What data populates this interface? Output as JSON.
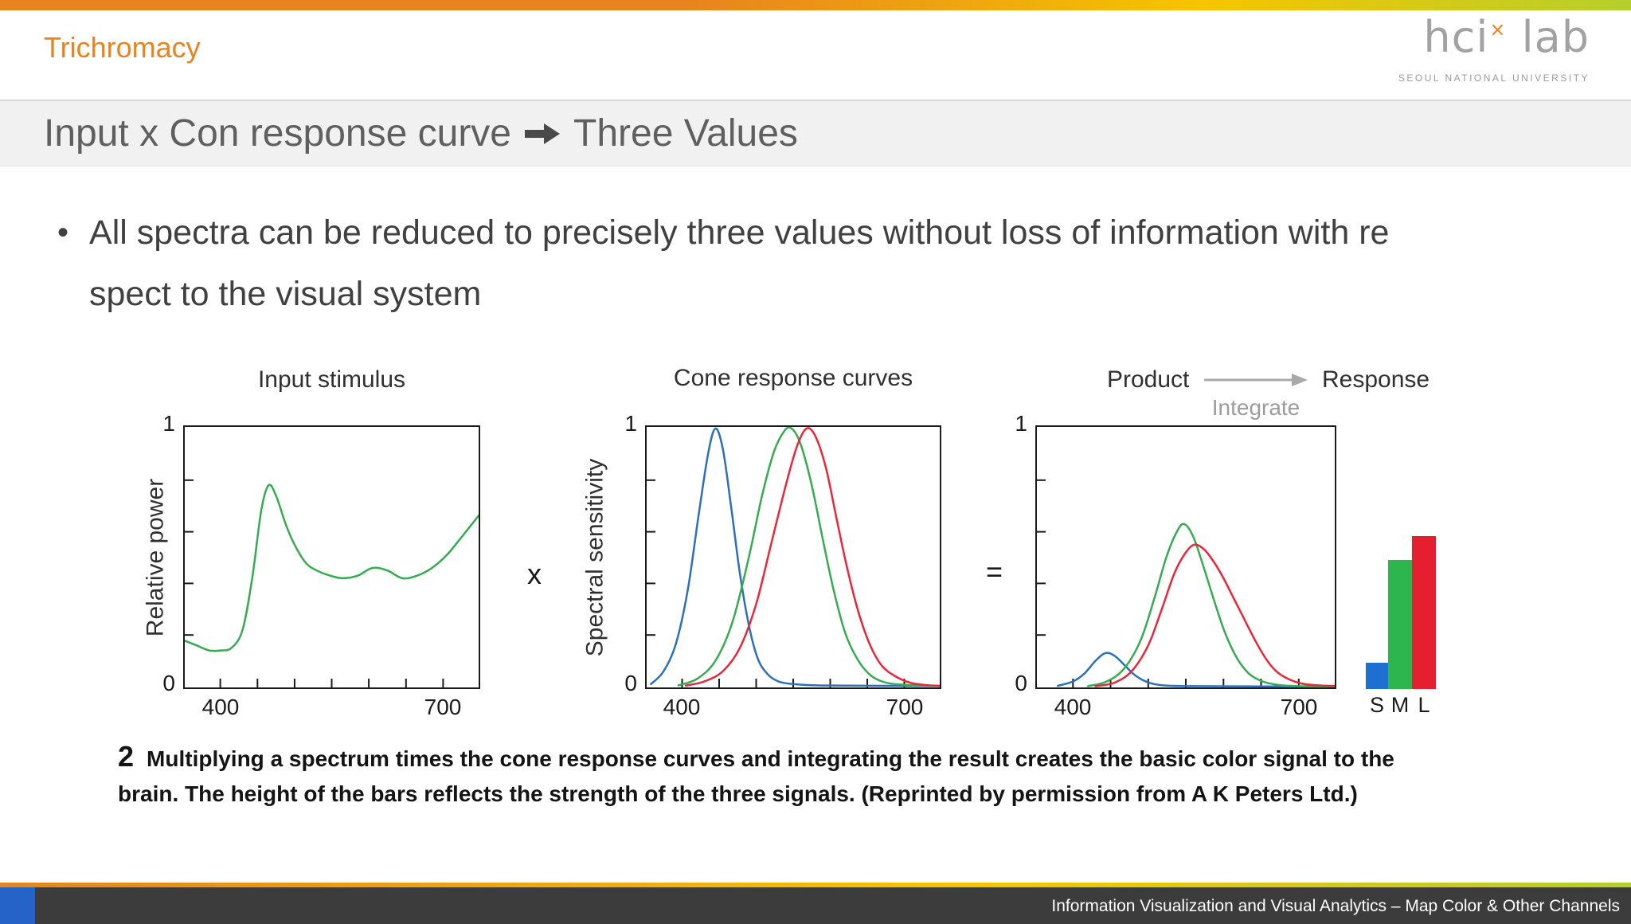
{
  "theme": {
    "accent_orange": "#e8831e",
    "accent_yellow": "#f6c500",
    "accent_green": "#b5cf2c",
    "accent_blue": "#2563c8",
    "footer_bg": "#3c3c3c",
    "band_bg": "#f1f1f1"
  },
  "header": {
    "section": "Trichromacy"
  },
  "logo": {
    "hci": "hci",
    "x": "×",
    "lab": "lab",
    "subtitle": "SEOUL NATIONAL UNIVERSITY"
  },
  "title": {
    "pre": "Input x Con response curve",
    "post": "Three Values"
  },
  "bullet": {
    "marker": "•",
    "line1": "All spectra can be reduced to precisely three values without loss of information with re",
    "line2": "spect to the visual system"
  },
  "figure": {
    "operator_multiply": "x",
    "operator_equals": "="
  },
  "caption": {
    "number": "2",
    "text": "Multiplying a spectrum times the cone response curves and integrating the result creates the basic color signal to the brain. The height of the bars reflects the strength of the three signals. (Reprinted by permission from A K Peters Ltd.)"
  },
  "footer": {
    "text": "Information Visualization and Visual Analytics – Map Color & Other Channels"
  },
  "chart_data": [
    {
      "type": "line",
      "title": "Input stimulus",
      "ylabel": "Relative power",
      "xlim": [
        350,
        750
      ],
      "ylim": [
        0,
        1
      ],
      "xticks_minor": [
        400,
        450,
        500,
        550,
        600,
        650,
        700
      ],
      "yticks_minor": [
        0.2,
        0.4,
        0.6,
        0.8
      ],
      "xtick_left": "400",
      "xtick_right": "700",
      "ytick_top": "1",
      "ytick_bottom": "0",
      "series": [
        {
          "name": "input-spectrum",
          "color": "#35ab52",
          "points": [
            [
              350,
              0.18
            ],
            [
              368,
              0.16
            ],
            [
              385,
              0.14
            ],
            [
              400,
              0.14
            ],
            [
              415,
              0.15
            ],
            [
              430,
              0.22
            ],
            [
              443,
              0.42
            ],
            [
              455,
              0.68
            ],
            [
              465,
              0.78
            ],
            [
              475,
              0.74
            ],
            [
              488,
              0.63
            ],
            [
              500,
              0.55
            ],
            [
              515,
              0.48
            ],
            [
              530,
              0.45
            ],
            [
              548,
              0.43
            ],
            [
              565,
              0.42
            ],
            [
              585,
              0.43
            ],
            [
              605,
              0.46
            ],
            [
              625,
              0.45
            ],
            [
              645,
              0.42
            ],
            [
              665,
              0.43
            ],
            [
              685,
              0.46
            ],
            [
              705,
              0.51
            ],
            [
              725,
              0.58
            ],
            [
              750,
              0.67
            ]
          ]
        }
      ]
    },
    {
      "type": "line",
      "title": "Cone response curves",
      "ylabel": "Spectral sensitivity",
      "xlim": [
        350,
        750
      ],
      "ylim": [
        0,
        1
      ],
      "xticks_minor": [
        400,
        450,
        500,
        550,
        600,
        650,
        700
      ],
      "yticks_minor": [
        0.2,
        0.4,
        0.6,
        0.8
      ],
      "xtick_left": "400",
      "xtick_right": "700",
      "ytick_top": "1",
      "ytick_bottom": "0",
      "series": [
        {
          "name": "S-cone",
          "color": "#2b6fbd",
          "points": [
            [
              358,
              0.01
            ],
            [
              375,
              0.06
            ],
            [
              392,
              0.17
            ],
            [
              408,
              0.38
            ],
            [
              422,
              0.66
            ],
            [
              435,
              0.9
            ],
            [
              445,
              1.0
            ],
            [
              455,
              0.92
            ],
            [
              466,
              0.7
            ],
            [
              478,
              0.44
            ],
            [
              490,
              0.24
            ],
            [
              502,
              0.11
            ],
            [
              515,
              0.05
            ],
            [
              530,
              0.02
            ],
            [
              550,
              0.01
            ],
            [
              580,
              0.005
            ],
            [
              620,
              0.004
            ],
            [
              680,
              0.003
            ],
            [
              750,
              0.002
            ]
          ]
        },
        {
          "name": "M-cone",
          "color": "#35ab52",
          "points": [
            [
              395,
              0.005
            ],
            [
              420,
              0.03
            ],
            [
              445,
              0.1
            ],
            [
              468,
              0.25
            ],
            [
              490,
              0.5
            ],
            [
              508,
              0.74
            ],
            [
              524,
              0.91
            ],
            [
              538,
              0.99
            ],
            [
              548,
              1.0
            ],
            [
              560,
              0.94
            ],
            [
              575,
              0.78
            ],
            [
              590,
              0.57
            ],
            [
              605,
              0.37
            ],
            [
              620,
              0.21
            ],
            [
              636,
              0.11
            ],
            [
              652,
              0.05
            ],
            [
              670,
              0.02
            ],
            [
              695,
              0.008
            ],
            [
              750,
              0.002
            ]
          ]
        },
        {
          "name": "L-cone",
          "color": "#e8273a",
          "points": [
            [
              405,
              0.004
            ],
            [
              430,
              0.02
            ],
            [
              455,
              0.06
            ],
            [
              478,
              0.15
            ],
            [
              500,
              0.32
            ],
            [
              520,
              0.55
            ],
            [
              540,
              0.78
            ],
            [
              555,
              0.93
            ],
            [
              568,
              1.0
            ],
            [
              580,
              0.97
            ],
            [
              594,
              0.85
            ],
            [
              608,
              0.66
            ],
            [
              622,
              0.47
            ],
            [
              638,
              0.29
            ],
            [
              654,
              0.16
            ],
            [
              670,
              0.08
            ],
            [
              688,
              0.04
            ],
            [
              708,
              0.015
            ],
            [
              730,
              0.006
            ],
            [
              750,
              0.003
            ]
          ]
        }
      ]
    },
    {
      "type": "line",
      "title_left": "Product",
      "title_mid": "Integrate",
      "title_right": "Response",
      "xlim": [
        350,
        750
      ],
      "ylim": [
        0,
        1
      ],
      "xticks_minor": [
        400,
        450,
        500,
        550,
        600,
        650,
        700
      ],
      "yticks_minor": [
        0.2,
        0.4,
        0.6,
        0.8
      ],
      "xtick_left": "400",
      "xtick_right": "700",
      "ytick_top": "1",
      "ytick_bottom": "0",
      "series": [
        {
          "name": "S-product",
          "color": "#2b6fbd",
          "points": [
            [
              380,
              0.003
            ],
            [
              400,
              0.02
            ],
            [
              415,
              0.05
            ],
            [
              430,
              0.1
            ],
            [
              443,
              0.13
            ],
            [
              455,
              0.12
            ],
            [
              468,
              0.085
            ],
            [
              480,
              0.05
            ],
            [
              493,
              0.025
            ],
            [
              508,
              0.01
            ],
            [
              525,
              0.004
            ],
            [
              560,
              0.002
            ],
            [
              650,
              0.001
            ],
            [
              750,
              0.001
            ]
          ]
        },
        {
          "name": "M-product",
          "color": "#35ab52",
          "points": [
            [
              420,
              0.002
            ],
            [
              445,
              0.02
            ],
            [
              468,
              0.07
            ],
            [
              490,
              0.18
            ],
            [
              508,
              0.34
            ],
            [
              524,
              0.5
            ],
            [
              538,
              0.6
            ],
            [
              548,
              0.63
            ],
            [
              560,
              0.58
            ],
            [
              574,
              0.46
            ],
            [
              588,
              0.33
            ],
            [
              602,
              0.21
            ],
            [
              618,
              0.11
            ],
            [
              634,
              0.05
            ],
            [
              652,
              0.02
            ],
            [
              672,
              0.007
            ],
            [
              700,
              0.002
            ],
            [
              750,
              0.001
            ]
          ]
        },
        {
          "name": "L-product",
          "color": "#e8273a",
          "points": [
            [
              430,
              0.002
            ],
            [
              455,
              0.015
            ],
            [
              478,
              0.06
            ],
            [
              500,
              0.16
            ],
            [
              518,
              0.3
            ],
            [
              535,
              0.44
            ],
            [
              550,
              0.52
            ],
            [
              562,
              0.55
            ],
            [
              575,
              0.53
            ],
            [
              588,
              0.48
            ],
            [
              600,
              0.42
            ],
            [
              614,
              0.34
            ],
            [
              628,
              0.26
            ],
            [
              642,
              0.18
            ],
            [
              656,
              0.11
            ],
            [
              670,
              0.06
            ],
            [
              686,
              0.03
            ],
            [
              704,
              0.012
            ],
            [
              725,
              0.005
            ],
            [
              750,
              0.002
            ]
          ]
        }
      ],
      "bars": {
        "items": [
          {
            "label": "S",
            "value": 0.1,
            "color": "#1d6fd1"
          },
          {
            "label": "M",
            "value": 0.49,
            "color": "#2eb64e"
          },
          {
            "label": "L",
            "value": 0.58,
            "color": "#e51f30"
          }
        ]
      }
    }
  ]
}
